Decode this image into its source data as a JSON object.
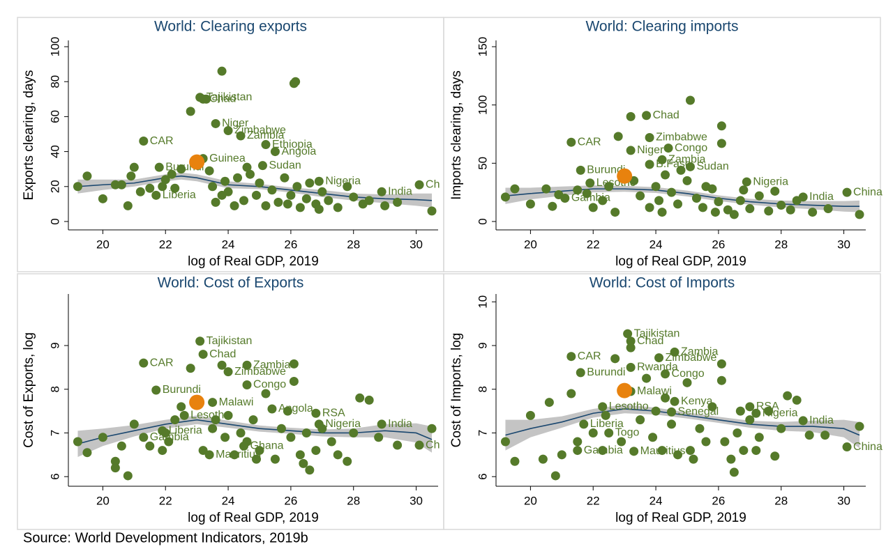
{
  "source": "Source: World Development Indicators, 2019b",
  "chart_data": [
    {
      "type": "scatter",
      "title": "World: Clearing exports",
      "xlabel": "log of Real GDP, 2019",
      "ylabel": "Exports clearing, days",
      "xlim": [
        18.9,
        30.7
      ],
      "ylim": [
        -4.8,
        103.6
      ],
      "xticks": [
        20,
        22,
        24,
        26,
        28,
        30
      ],
      "yticks": [
        0,
        20,
        40,
        60,
        80,
        100
      ],
      "point_color": "#557a2a",
      "highlight_color": "#e8820e",
      "fit_color": "#1a476f",
      "band_color": "#c4c4c4",
      "x": [
        19.2,
        19.5,
        20,
        20.4,
        20.6,
        20.8,
        20.9,
        21,
        21.2,
        21.5,
        22,
        22.3,
        22.5,
        22.8,
        23.3,
        23.5,
        23.6,
        23.8,
        23.9,
        24,
        24.2,
        24.3,
        24.5,
        24.7,
        24.9,
        25,
        25.2,
        25.4,
        25.6,
        25.8,
        26,
        26.1,
        26.15,
        26.2,
        26.3,
        26.5,
        26.6,
        26.8,
        27,
        27.2,
        27.5,
        27.8,
        28,
        28.3,
        28.5,
        29,
        29.4,
        30.5,
        22.2,
        23.8,
        24.6,
        25.9,
        26.9,
        21.9,
        23.4
      ],
      "y": [
        20,
        26,
        13,
        21,
        21,
        9,
        26,
        31,
        17,
        19,
        24,
        19,
        30,
        63,
        70,
        20,
        11,
        86,
        23,
        17,
        9,
        25,
        12,
        27,
        15,
        22,
        9,
        18,
        11,
        25,
        15,
        79,
        80,
        20,
        8,
        13,
        22,
        10,
        17,
        12,
        8,
        20,
        14,
        10,
        12,
        9,
        11,
        6,
        27,
        15,
        31,
        10,
        7,
        20,
        29
      ],
      "labeled": [
        {
          "text": "Tajikistan",
          "x": 23.1,
          "y": 71
        },
        {
          "text": "Chad",
          "x": 23.2,
          "y": 70
        },
        {
          "text": "Niger",
          "x": 23.6,
          "y": 56
        },
        {
          "text": "Zimbabwe",
          "x": 24,
          "y": 52
        },
        {
          "text": "Zambia",
          "x": 24.4,
          "y": 49
        },
        {
          "text": "CAR",
          "x": 21.3,
          "y": 46
        },
        {
          "text": "Ethiopia",
          "x": 25.2,
          "y": 44
        },
        {
          "text": "Angola",
          "x": 25.5,
          "y": 40
        },
        {
          "text": "Sudan",
          "x": 25.1,
          "y": 32
        },
        {
          "text": "Guinea",
          "x": 23.2,
          "y": 36
        },
        {
          "text": "Burundi",
          "x": 21.8,
          "y": 31
        },
        {
          "text": "Nigeria",
          "x": 26.9,
          "y": 23
        },
        {
          "text": "India",
          "x": 28.9,
          "y": 17
        },
        {
          "text": "Ch",
          "x": 30.1,
          "y": 21
        },
        {
          "text": "Liberia",
          "x": 21.7,
          "y": 15
        }
      ],
      "highlight": {
        "x": 23,
        "y": 34
      },
      "fit": {
        "x": [
          19.2,
          20,
          21,
          22,
          22.5,
          23,
          24,
          25,
          26,
          27,
          28,
          29,
          30,
          30.5
        ],
        "y": [
          20,
          21,
          22,
          25,
          26,
          25,
          21,
          20,
          18,
          16,
          14,
          13,
          12.5,
          12
        ],
        "lower": [
          16,
          18,
          20,
          23,
          24,
          23,
          19,
          18.5,
          16.5,
          14,
          12,
          10.5,
          9,
          8
        ],
        "upper": [
          24,
          24,
          24,
          27,
          28,
          27,
          23,
          21.5,
          19.5,
          18,
          16,
          15.5,
          16,
          16
        ]
      }
    },
    {
      "type": "scatter",
      "title": "World: Clearing imports",
      "xlabel": "log of Real GDP, 2019",
      "ylabel": "Imports clearing, days",
      "xlim": [
        18.9,
        30.7
      ],
      "ylim": [
        -7.2,
        155.4
      ],
      "xticks": [
        20,
        22,
        24,
        26,
        28,
        30
      ],
      "yticks": [
        0,
        50,
        100,
        150
      ],
      "point_color": "#557a2a",
      "highlight_color": "#e8820e",
      "fit_color": "#1a476f",
      "band_color": "#c4c4c4",
      "x": [
        19.2,
        19.5,
        20,
        20.5,
        20.7,
        20.9,
        21.5,
        22,
        22.3,
        22.5,
        22.8,
        23.2,
        23.5,
        23.8,
        24,
        24.2,
        24.5,
        24.7,
        25,
        25.1,
        25.3,
        25.5,
        25.8,
        26,
        26.1,
        26.1,
        26.3,
        26.5,
        26.7,
        27,
        27.3,
        27.6,
        27.8,
        28,
        28.3,
        28.5,
        29,
        29.5,
        30.5,
        21.8,
        23.3,
        24.3,
        24.8,
        25.6,
        26.8,
        22.7,
        24.1,
        25.9
      ],
      "y": [
        21,
        28,
        15,
        28,
        13,
        23,
        27,
        12,
        18,
        30,
        73,
        90,
        22,
        12,
        30,
        8,
        25,
        15,
        35,
        104,
        20,
        12,
        28,
        17,
        82,
        67,
        10,
        6,
        18,
        11,
        22,
        9,
        26,
        14,
        10,
        18,
        8,
        11,
        6,
        24,
        35,
        40,
        44,
        30,
        27,
        8,
        18,
        8
      ],
      "labeled": [
        {
          "text": "Chad",
          "x": 23.7,
          "y": 91
        },
        {
          "text": "CAR",
          "x": 21.3,
          "y": 68
        },
        {
          "text": "Zimbabwe",
          "x": 23.8,
          "y": 72
        },
        {
          "text": "Niger",
          "x": 23.2,
          "y": 61
        },
        {
          "text": "Congo",
          "x": 24.4,
          "y": 63
        },
        {
          "text": "Zambia",
          "x": 24.2,
          "y": 53
        },
        {
          "text": "B.Faso",
          "x": 23.8,
          "y": 49
        },
        {
          "text": "Sudan",
          "x": 25.1,
          "y": 47
        },
        {
          "text": "Burundi",
          "x": 21.6,
          "y": 44
        },
        {
          "text": "Lesotho",
          "x": 21.9,
          "y": 33
        },
        {
          "text": "Gambia",
          "x": 21.1,
          "y": 20
        },
        {
          "text": "Nigeria",
          "x": 26.9,
          "y": 34
        },
        {
          "text": "India",
          "x": 28.7,
          "y": 21
        },
        {
          "text": "China",
          "x": 30.1,
          "y": 25
        }
      ],
      "highlight": {
        "x": 23,
        "y": 39
      },
      "fit": {
        "x": [
          19.2,
          20,
          21,
          22,
          23,
          24,
          25,
          26,
          27,
          28,
          29,
          30,
          30.5
        ],
        "y": [
          22,
          24,
          26,
          28,
          28,
          27,
          24,
          20,
          17,
          15,
          14,
          13,
          13
        ],
        "lower": [
          15,
          19,
          22,
          25,
          25.5,
          24.5,
          21.5,
          17.5,
          14.5,
          12,
          10.5,
          8.5,
          8
        ],
        "upper": [
          29,
          29,
          30,
          31,
          30.5,
          29.5,
          26.5,
          22.5,
          19.5,
          18,
          17.5,
          17.5,
          18
        ]
      }
    },
    {
      "type": "scatter",
      "title": "World: Cost of Exports",
      "xlabel": "log of Real GDP, 2019",
      "ylabel": "Cost of Exports, log",
      "xlim": [
        18.9,
        30.7
      ],
      "ylim": [
        5.78,
        10.18
      ],
      "xticks": [
        20,
        22,
        24,
        26,
        28,
        30
      ],
      "yticks": [
        6,
        7,
        8,
        9
      ],
      "point_color": "#557a2a",
      "highlight_color": "#e8820e",
      "fit_color": "#1a476f",
      "band_color": "#c4c4c4",
      "x": [
        19.2,
        19.5,
        20,
        20.4,
        20.4,
        20.6,
        20.8,
        21,
        21.5,
        21.9,
        22.1,
        22.3,
        22.5,
        22.8,
        23.2,
        23.5,
        23.8,
        23.9,
        24,
        24.2,
        24.4,
        24.6,
        24.8,
        25,
        25.2,
        25.5,
        25.7,
        26,
        26.1,
        26.1,
        26.3,
        26.5,
        26.6,
        26.8,
        27,
        27.3,
        27.5,
        27.8,
        28,
        28.2,
        28.5,
        28.8,
        29.4,
        30.5,
        22,
        23.6,
        24.9,
        25.9,
        26.4
      ],
      "y": [
        6.8,
        6.55,
        6.9,
        6.35,
        6.2,
        6.7,
        6.02,
        7.2,
        6.7,
        6.6,
        6.8,
        7.3,
        7.6,
        8.48,
        6.6,
        7.1,
        8.55,
        6.9,
        7.4,
        6.5,
        7.0,
        6.8,
        7.3,
        6.6,
        7.9,
        6.4,
        7.1,
        6.9,
        8.58,
        8.18,
        6.5,
        7.0,
        6.15,
        6.6,
        7.1,
        6.8,
        6.5,
        6.35,
        7.0,
        7.8,
        7.75,
        6.9,
        6.72,
        7.1,
        7.0,
        7.3,
        6.4,
        7.5,
        6.3
      ],
      "labeled": [
        {
          "text": "Tajikistan",
          "x": 23.1,
          "y": 9.1
        },
        {
          "text": "Chad",
          "x": 23.2,
          "y": 8.8
        },
        {
          "text": "CAR",
          "x": 21.3,
          "y": 8.6
        },
        {
          "text": "Zambia",
          "x": 24.6,
          "y": 8.55
        },
        {
          "text": "Zimbabwe",
          "x": 24,
          "y": 8.4
        },
        {
          "text": "Congo",
          "x": 24.6,
          "y": 8.1
        },
        {
          "text": "Burundi",
          "x": 21.7,
          "y": 7.98
        },
        {
          "text": "Angola",
          "x": 25.4,
          "y": 7.55
        },
        {
          "text": "RSA",
          "x": 26.8,
          "y": 7.45
        },
        {
          "text": "Nigeria",
          "x": 26.9,
          "y": 7.2
        },
        {
          "text": "India",
          "x": 28.9,
          "y": 7.2
        },
        {
          "text": "Liberia",
          "x": 21.9,
          "y": 7.05
        },
        {
          "text": "Gambia",
          "x": 21.3,
          "y": 6.9
        },
        {
          "text": "Ghana",
          "x": 24.5,
          "y": 6.7
        },
        {
          "text": "Mauritius",
          "x": 23.4,
          "y": 6.5
        },
        {
          "text": "Lesotho",
          "x": 22.6,
          "y": 7.4
        },
        {
          "text": "Malawi",
          "x": 23.5,
          "y": 7.7
        },
        {
          "text": "Ch",
          "x": 30.1,
          "y": 6.72
        }
      ],
      "highlight": {
        "x": 23,
        "y": 7.7
      },
      "fit": {
        "x": [
          19.2,
          20,
          21,
          22,
          23,
          24,
          25,
          26,
          27,
          28,
          29,
          30,
          30.5
        ],
        "y": [
          6.75,
          6.9,
          7.05,
          7.2,
          7.3,
          7.2,
          7.1,
          7.05,
          7.0,
          7.0,
          7.05,
          7.0,
          6.85
        ],
        "lower": [
          6.45,
          6.7,
          6.92,
          7.1,
          7.2,
          7.12,
          7.03,
          6.98,
          6.92,
          6.9,
          6.9,
          6.78,
          6.55
        ],
        "upper": [
          7.05,
          7.1,
          7.18,
          7.3,
          7.4,
          7.28,
          7.17,
          7.12,
          7.08,
          7.1,
          7.2,
          7.22,
          7.15
        ]
      }
    },
    {
      "type": "scatter",
      "title": "World: Cost of Imports",
      "xlabel": "log of Real GDP, 2019",
      "ylabel": "Cost of Imports, log",
      "xlim": [
        18.9,
        30.7
      ],
      "ylim": [
        5.78,
        10.18
      ],
      "xticks": [
        20,
        22,
        24,
        26,
        28,
        30
      ],
      "yticks": [
        6,
        7,
        8,
        9,
        10
      ],
      "point_color": "#557a2a",
      "highlight_color": "#e8820e",
      "fit_color": "#1a476f",
      "band_color": "#c4c4c4",
      "x": [
        19.2,
        19.5,
        20,
        20.4,
        20.6,
        20.8,
        21,
        21.3,
        21.5,
        22,
        22.3,
        22.7,
        22.9,
        23.2,
        23.5,
        23.7,
        23.9,
        24,
        24.2,
        24.5,
        24.7,
        25,
        25.2,
        25.4,
        25.6,
        25.8,
        26.1,
        26.1,
        26.2,
        26.4,
        26.5,
        26.6,
        26.8,
        27,
        27.3,
        27.6,
        27.8,
        28,
        28.2,
        28.5,
        28.9,
        29.4,
        30.5,
        22.4,
        24.3,
        25.1,
        26.7,
        27.2
      ],
      "y": [
        6.8,
        6.35,
        7.4,
        6.4,
        7.7,
        6.02,
        6.5,
        7.9,
        6.8,
        7.0,
        6.6,
        8.7,
        6.8,
        8.95,
        7.3,
        8.25,
        6.9,
        7.5,
        6.6,
        7.2,
        6.5,
        8.15,
        6.4,
        7.1,
        6.8,
        7.6,
        8.58,
        8.2,
        6.8,
        6.4,
        6.1,
        7.0,
        6.6,
        7.3,
        6.9,
        7.5,
        6.47,
        7.1,
        7.85,
        7.75,
        6.95,
        6.95,
        7.15,
        7.4,
        7.8,
        6.6,
        7.5,
        6.6
      ],
      "labeled": [
        {
          "text": "Tajikistan",
          "x": 23.1,
          "y": 9.27
        },
        {
          "text": "Chad",
          "x": 23.2,
          "y": 9.1
        },
        {
          "text": "Zambia",
          "x": 24.6,
          "y": 8.85
        },
        {
          "text": "Zimbabwe",
          "x": 24.1,
          "y": 8.72
        },
        {
          "text": "CAR",
          "x": 21.3,
          "y": 8.75
        },
        {
          "text": "Rwanda",
          "x": 23.2,
          "y": 8.5
        },
        {
          "text": "Burundi",
          "x": 21.6,
          "y": 8.38
        },
        {
          "text": "Congo",
          "x": 24.3,
          "y": 8.35
        },
        {
          "text": "Malawi",
          "x": 23.2,
          "y": 7.95
        },
        {
          "text": "Kenya",
          "x": 24.6,
          "y": 7.72
        },
        {
          "text": "Senegal",
          "x": 24.5,
          "y": 7.48
        },
        {
          "text": "RSA",
          "x": 27,
          "y": 7.6
        },
        {
          "text": "Nigeria",
          "x": 27.2,
          "y": 7.45
        },
        {
          "text": "Lesotho",
          "x": 22.3,
          "y": 7.6
        },
        {
          "text": "Liberia",
          "x": 21.7,
          "y": 7.2
        },
        {
          "text": "Togo",
          "x": 22.5,
          "y": 7.0
        },
        {
          "text": "India",
          "x": 28.7,
          "y": 7.28
        },
        {
          "text": "China",
          "x": 30.1,
          "y": 6.68
        },
        {
          "text": "Gambia",
          "x": 21.5,
          "y": 6.6
        },
        {
          "text": "Mauritius",
          "x": 23.3,
          "y": 6.58
        }
      ],
      "highlight": {
        "x": 23,
        "y": 7.97
      },
      "fit": {
        "x": [
          19.2,
          20,
          21,
          22,
          23,
          24,
          25,
          26,
          27,
          28,
          29,
          30,
          30.5
        ],
        "y": [
          6.95,
          7.1,
          7.25,
          7.45,
          7.55,
          7.5,
          7.4,
          7.3,
          7.2,
          7.15,
          7.15,
          7.1,
          6.95
        ],
        "lower": [
          6.6,
          6.9,
          7.12,
          7.35,
          7.45,
          7.42,
          7.33,
          7.23,
          7.12,
          7.05,
          7.02,
          6.9,
          6.65
        ],
        "upper": [
          7.3,
          7.3,
          7.38,
          7.55,
          7.65,
          7.58,
          7.47,
          7.37,
          7.28,
          7.25,
          7.28,
          7.3,
          7.25
        ]
      }
    }
  ]
}
